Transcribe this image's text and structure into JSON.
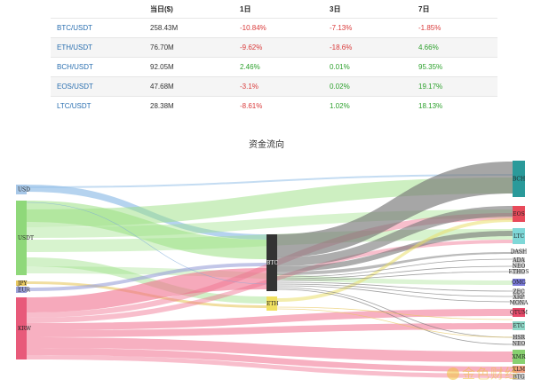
{
  "table": {
    "headers": [
      "",
      "当日($)",
      "1日",
      "3日",
      "7日"
    ],
    "rows": [
      {
        "pair": "BTC/USDT",
        "volume": "258.43M",
        "d1": "-10.84%",
        "d3": "-7.13%",
        "d7": "-1.85%"
      },
      {
        "pair": "ETH/USDT",
        "volume": "76.70M",
        "d1": "-9.62%",
        "d3": "-18.6%",
        "d7": "4.66%"
      },
      {
        "pair": "BCH/USDT",
        "volume": "92.05M",
        "d1": "2.46%",
        "d3": "0.01%",
        "d7": "95.35%"
      },
      {
        "pair": "EOS/USDT",
        "volume": "47.68M",
        "d1": "-3.1%",
        "d3": "0.02%",
        "d7": "19.17%"
      },
      {
        "pair": "LTC/USDT",
        "volume": "28.38M",
        "d1": "-8.61%",
        "d3": "1.02%",
        "d7": "18.13%"
      }
    ]
  },
  "chart": {
    "title": "资金流向",
    "left_nodes": [
      {
        "label": "USD",
        "color": "#a8c8e8"
      },
      {
        "label": "USDT",
        "color": "#8fd87a"
      },
      {
        "label": "JPY",
        "color": "#e8c860"
      },
      {
        "label": "EUR",
        "color": "#9aa0d8"
      },
      {
        "label": "KRW",
        "color": "#e85a7a"
      }
    ],
    "middle_nodes": [
      {
        "label": "BTC",
        "color": "#333333"
      },
      {
        "label": "ETH",
        "color": "#f0e060"
      }
    ],
    "right_nodes": [
      {
        "label": "BCH",
        "color": "#2a9a9a"
      },
      {
        "label": "EOS",
        "color": "#e84a5a"
      },
      {
        "label": "LTC",
        "color": "#7fd8d8"
      },
      {
        "label": "DASH",
        "color": "#cccccc"
      },
      {
        "label": "ADA",
        "color": "#cccccc"
      },
      {
        "label": "NEO",
        "color": "#cccccc"
      },
      {
        "label": "ETHOS",
        "color": "#cccccc"
      },
      {
        "label": "OMG",
        "color": "#7a7ad8"
      },
      {
        "label": "ZEC",
        "color": "#cccccc"
      },
      {
        "label": "XRP",
        "color": "#cccccc"
      },
      {
        "label": "MONA",
        "color": "#cccccc"
      },
      {
        "label": "QTUM",
        "color": "#e84a6a"
      },
      {
        "label": "ETC",
        "color": "#8fd8c8"
      },
      {
        "label": "HSR",
        "color": "#cccccc"
      },
      {
        "label": "NEO",
        "color": "#cccccc"
      },
      {
        "label": "XMR",
        "color": "#88d070"
      },
      {
        "label": "XLM",
        "color": "#f0a080"
      },
      {
        "label": "BTG",
        "color": "#cccccc"
      }
    ]
  },
  "watermark": "金色财经"
}
